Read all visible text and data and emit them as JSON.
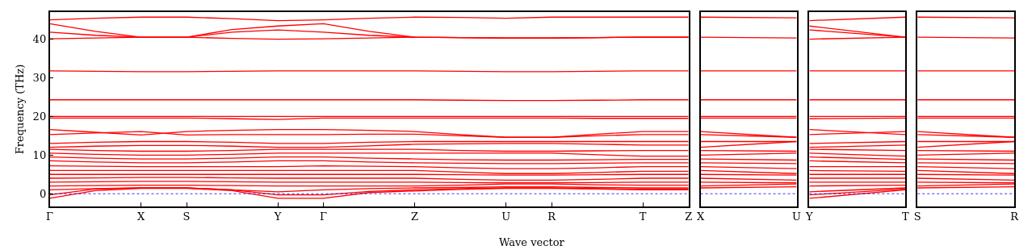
{
  "chart_data": [
    {
      "type": "line",
      "ylabel": "Frequency (THz)",
      "xlabel": "Wave vector",
      "grid": false,
      "marker": "none",
      "line_style": "solid",
      "categories": [
        "Γ",
        null,
        "X",
        "S",
        null,
        "Y",
        "Γ",
        null,
        "Z",
        null,
        "U",
        "R",
        null,
        "T",
        "Z"
      ],
      "ylim": [
        -3.3,
        47
      ],
      "yticks": [
        0,
        10,
        20,
        30,
        40
      ],
      "ref_lines": [
        {
          "axis": "y",
          "value": 0,
          "color": "#0000ff",
          "line_style": "dotted"
        }
      ],
      "series": [
        {
          "color": "#ff0000",
          "values": [
            45.0,
            45.4,
            45.7,
            45.7,
            45.3,
            44.8,
            45.0,
            45.4,
            45.7,
            45.6,
            45.4,
            45.7,
            45.7,
            45.7,
            45.7
          ]
        },
        {
          "color": "#ff0000",
          "values": [
            44.0,
            42.0,
            40.5,
            40.5,
            42.5,
            43.4,
            44.0,
            42.0,
            40.5,
            40.4,
            40.3,
            40.3,
            40.4,
            40.5,
            40.5
          ]
        },
        {
          "color": "#ff0000",
          "values": [
            41.8,
            41.0,
            40.5,
            40.5,
            41.8,
            42.4,
            41.8,
            41.0,
            40.5,
            40.4,
            40.3,
            40.3,
            40.4,
            40.5,
            40.5
          ]
        },
        {
          "color": "#ff0000",
          "values": [
            40.1,
            40.3,
            40.5,
            40.5,
            40.2,
            40.0,
            40.1,
            40.3,
            40.5,
            40.4,
            40.3,
            40.3,
            40.4,
            40.5,
            40.5
          ]
        },
        {
          "color": "#ff0000",
          "values": [
            31.8,
            31.7,
            31.6,
            31.6,
            31.7,
            31.8,
            31.8,
            31.8,
            31.8,
            31.7,
            31.6,
            31.6,
            31.7,
            31.8,
            31.8
          ]
        },
        {
          "color": "#ff0000",
          "values": [
            24.3,
            24.3,
            24.3,
            24.3,
            24.3,
            24.3,
            24.3,
            24.3,
            24.3,
            24.2,
            24.1,
            24.1,
            24.2,
            24.3,
            24.3
          ]
        },
        {
          "color": "#ff0000",
          "values": [
            20.0,
            20.0,
            20.0,
            20.0,
            20.0,
            20.0,
            20.0,
            20.0,
            20.0,
            20.0,
            20.0,
            20.0,
            20.0,
            20.0,
            20.0
          ]
        },
        {
          "color": "#ff0000",
          "values": [
            19.6,
            19.6,
            19.6,
            19.6,
            19.4,
            19.2,
            19.6,
            19.6,
            19.6,
            19.6,
            19.6,
            19.6,
            19.5,
            19.5,
            19.5
          ]
        },
        {
          "color": "#ff0000",
          "values": [
            16.6,
            15.9,
            15.2,
            16.1,
            16.4,
            16.6,
            16.6,
            16.4,
            16.1,
            15.3,
            14.6,
            14.6,
            15.4,
            16.1,
            16.1
          ]
        },
        {
          "color": "#ff0000",
          "values": [
            15.3,
            15.7,
            16.1,
            15.2,
            15.3,
            15.3,
            15.3,
            15.4,
            15.4,
            15.0,
            14.6,
            14.6,
            15.0,
            15.3,
            15.3
          ]
        },
        {
          "color": "#ff0000",
          "values": [
            13.0,
            13.3,
            13.5,
            13.5,
            13.3,
            13.0,
            13.0,
            13.3,
            13.5,
            13.5,
            13.5,
            13.5,
            13.5,
            13.5,
            13.5
          ]
        },
        {
          "color": "#ff0000",
          "values": [
            12.0,
            12.3,
            12.5,
            12.5,
            12.3,
            12.0,
            12.0,
            12.4,
            12.8,
            12.9,
            13.0,
            13.0,
            12.8,
            12.6,
            12.6
          ]
        },
        {
          "color": "#ff0000",
          "values": [
            11.5,
            11.2,
            11.0,
            11.0,
            11.2,
            11.5,
            11.5,
            11.5,
            11.5,
            11.2,
            11.0,
            11.0,
            11.1,
            11.2,
            11.2
          ]
        },
        {
          "color": "#ff0000",
          "values": [
            10.5,
            10.2,
            10.0,
            10.0,
            10.2,
            10.5,
            10.5,
            10.5,
            10.5,
            10.5,
            10.5,
            10.5,
            10.1,
            9.7,
            9.7
          ]
        },
        {
          "color": "#ff0000",
          "values": [
            9.5,
            9.2,
            9.0,
            9.0,
            9.2,
            9.5,
            9.5,
            9.2,
            9.0,
            8.8,
            8.7,
            8.7,
            8.8,
            8.9,
            8.9
          ]
        },
        {
          "color": "#ff0000",
          "values": [
            8.5,
            8.2,
            8.0,
            8.0,
            8.2,
            8.5,
            8.5,
            8.2,
            8.0,
            7.9,
            7.8,
            7.8,
            7.9,
            8.0,
            8.0
          ]
        },
        {
          "color": "#ff0000",
          "values": [
            7.2,
            7.1,
            7.0,
            7.0,
            7.0,
            7.0,
            7.2,
            7.1,
            7.0,
            6.7,
            6.5,
            6.5,
            6.7,
            7.0,
            7.0
          ]
        },
        {
          "color": "#ff0000",
          "values": [
            6.0,
            6.0,
            6.0,
            6.0,
            6.0,
            6.0,
            6.0,
            6.0,
            6.0,
            5.6,
            5.2,
            5.2,
            5.5,
            5.8,
            5.8
          ]
        },
        {
          "color": "#ff0000",
          "values": [
            5.0,
            5.0,
            5.0,
            5.0,
            5.0,
            5.0,
            5.0,
            5.0,
            5.0,
            4.9,
            4.8,
            4.8,
            4.9,
            5.0,
            5.0
          ]
        },
        {
          "color": "#ff0000",
          "values": [
            4.0,
            4.1,
            4.2,
            4.2,
            4.1,
            4.0,
            4.0,
            4.0,
            4.0,
            3.7,
            3.5,
            3.5,
            3.7,
            4.0,
            4.0
          ]
        },
        {
          "color": "#ff0000",
          "values": [
            3.0,
            3.1,
            3.2,
            3.2,
            3.1,
            3.0,
            3.0,
            3.0,
            3.0,
            2.9,
            2.8,
            2.8,
            2.9,
            3.0,
            3.0
          ]
        },
        {
          "color": "#ff0000",
          "values": [
            2.0,
            2.1,
            2.2,
            2.2,
            2.1,
            2.0,
            2.0,
            2.0,
            2.0,
            2.2,
            2.5,
            2.5,
            2.3,
            2.2,
            2.2
          ]
        },
        {
          "color": "#ff0000",
          "values": [
            1.0,
            1.3,
            1.5,
            1.5,
            1.0,
            0.5,
            1.0,
            1.3,
            1.5,
            1.6,
            1.8,
            1.8,
            1.6,
            1.5,
            1.5
          ]
        },
        {
          "color": "#ff0000",
          "values": [
            -0.3,
            1.2,
            1.5,
            1.5,
            1.0,
            -0.3,
            -0.3,
            0.6,
            1.0,
            1.3,
            1.5,
            1.5,
            1.3,
            1.2,
            1.2
          ]
        },
        {
          "color": "#ff0000",
          "values": [
            -1.2,
            0.8,
            1.4,
            1.4,
            0.8,
            -1.2,
            -1.2,
            0.3,
            0.7,
            1.1,
            1.4,
            1.4,
            1.2,
            1.0,
            1.0
          ]
        }
      ]
    },
    {
      "type": "line",
      "marker": "none",
      "line_style": "solid",
      "tick_labels": "x",
      "categories": [
        "X",
        "U"
      ],
      "ylim": [
        -3.3,
        47
      ],
      "ref_lines": [
        {
          "axis": "y",
          "value": 0,
          "color": "#0000ff",
          "line_style": "dotted"
        }
      ],
      "series": [
        {
          "color": "#ff0000",
          "values": [
            45.7,
            45.5
          ]
        },
        {
          "color": "#ff0000",
          "values": [
            40.5,
            40.3
          ]
        },
        {
          "color": "#ff0000",
          "values": [
            31.8,
            31.8
          ]
        },
        {
          "color": "#ff0000",
          "values": [
            24.3,
            24.3
          ]
        },
        {
          "color": "#ff0000",
          "values": [
            20.0,
            20.0
          ]
        },
        {
          "color": "#ff0000",
          "values": [
            19.6,
            19.6
          ]
        },
        {
          "color": "#ff0000",
          "values": [
            16.1,
            14.6
          ]
        },
        {
          "color": "#ff0000",
          "values": [
            15.3,
            14.6
          ]
        },
        {
          "color": "#ff0000",
          "values": [
            13.5,
            13.5
          ]
        },
        {
          "color": "#ff0000",
          "values": [
            12.0,
            13.5
          ]
        },
        {
          "color": "#ff0000",
          "values": [
            11.2,
            11.0
          ]
        },
        {
          "color": "#ff0000",
          "values": [
            10.0,
            10.5
          ]
        },
        {
          "color": "#ff0000",
          "values": [
            9.0,
            8.7
          ]
        },
        {
          "color": "#ff0000",
          "values": [
            8.0,
            7.8
          ]
        },
        {
          "color": "#ff0000",
          "values": [
            7.0,
            6.5
          ]
        },
        {
          "color": "#ff0000",
          "values": [
            6.0,
            5.2
          ]
        },
        {
          "color": "#ff0000",
          "values": [
            5.0,
            4.8
          ]
        },
        {
          "color": "#ff0000",
          "values": [
            4.0,
            3.5
          ]
        },
        {
          "color": "#ff0000",
          "values": [
            3.0,
            2.8
          ]
        },
        {
          "color": "#ff0000",
          "values": [
            2.0,
            2.5
          ]
        },
        {
          "color": "#ff0000",
          "values": [
            1.5,
            1.8
          ]
        }
      ]
    },
    {
      "type": "line",
      "marker": "none",
      "line_style": "solid",
      "tick_labels": "x",
      "categories": [
        "Y",
        "T"
      ],
      "ylim": [
        -3.3,
        47
      ],
      "ref_lines": [
        {
          "axis": "y",
          "value": 0,
          "color": "#0000ff",
          "line_style": "dotted"
        }
      ],
      "series": [
        {
          "color": "#ff0000",
          "values": [
            44.8,
            45.7
          ]
        },
        {
          "color": "#ff0000",
          "values": [
            43.4,
            40.5
          ]
        },
        {
          "color": "#ff0000",
          "values": [
            42.4,
            40.5
          ]
        },
        {
          "color": "#ff0000",
          "values": [
            40.0,
            40.5
          ]
        },
        {
          "color": "#ff0000",
          "values": [
            31.8,
            31.8
          ]
        },
        {
          "color": "#ff0000",
          "values": [
            24.3,
            24.3
          ]
        },
        {
          "color": "#ff0000",
          "values": [
            20.0,
            20.0
          ]
        },
        {
          "color": "#ff0000",
          "values": [
            19.4,
            19.6
          ]
        },
        {
          "color": "#ff0000",
          "values": [
            16.6,
            15.3
          ]
        },
        {
          "color": "#ff0000",
          "values": [
            15.3,
            16.1
          ]
        },
        {
          "color": "#ff0000",
          "values": [
            13.0,
            13.5
          ]
        },
        {
          "color": "#ff0000",
          "values": [
            12.0,
            12.6
          ]
        },
        {
          "color": "#ff0000",
          "values": [
            11.5,
            11.2
          ]
        },
        {
          "color": "#ff0000",
          "values": [
            10.5,
            9.7
          ]
        },
        {
          "color": "#ff0000",
          "values": [
            9.5,
            8.9
          ]
        },
        {
          "color": "#ff0000",
          "values": [
            8.5,
            8.0
          ]
        },
        {
          "color": "#ff0000",
          "values": [
            7.0,
            7.0
          ]
        },
        {
          "color": "#ff0000",
          "values": [
            6.0,
            5.8
          ]
        },
        {
          "color": "#ff0000",
          "values": [
            5.0,
            5.0
          ]
        },
        {
          "color": "#ff0000",
          "values": [
            4.0,
            4.0
          ]
        },
        {
          "color": "#ff0000",
          "values": [
            3.0,
            3.0
          ]
        },
        {
          "color": "#ff0000",
          "values": [
            2.0,
            2.2
          ]
        },
        {
          "color": "#ff0000",
          "values": [
            0.5,
            1.5
          ]
        },
        {
          "color": "#ff0000",
          "values": [
            -0.3,
            1.2
          ]
        },
        {
          "color": "#ff0000",
          "values": [
            -1.2,
            1.0
          ]
        }
      ]
    },
    {
      "type": "line",
      "marker": "none",
      "line_style": "solid",
      "tick_labels": "x",
      "categories": [
        "S",
        "R"
      ],
      "ylim": [
        -3.3,
        47
      ],
      "ref_lines": [
        {
          "axis": "y",
          "value": 0,
          "color": "#0000ff",
          "line_style": "dotted"
        }
      ],
      "series": [
        {
          "color": "#ff0000",
          "values": [
            45.7,
            45.5
          ]
        },
        {
          "color": "#ff0000",
          "values": [
            40.5,
            40.3
          ]
        },
        {
          "color": "#ff0000",
          "values": [
            31.8,
            31.8
          ]
        },
        {
          "color": "#ff0000",
          "values": [
            24.3,
            24.3
          ]
        },
        {
          "color": "#ff0000",
          "values": [
            20.0,
            20.0
          ]
        },
        {
          "color": "#ff0000",
          "values": [
            19.6,
            19.6
          ]
        },
        {
          "color": "#ff0000",
          "values": [
            16.1,
            14.6
          ]
        },
        {
          "color": "#ff0000",
          "values": [
            15.3,
            14.6
          ]
        },
        {
          "color": "#ff0000",
          "values": [
            13.5,
            13.5
          ]
        },
        {
          "color": "#ff0000",
          "values": [
            12.0,
            13.5
          ]
        },
        {
          "color": "#ff0000",
          "values": [
            11.2,
            11.0
          ]
        },
        {
          "color": "#ff0000",
          "values": [
            10.0,
            10.5
          ]
        },
        {
          "color": "#ff0000",
          "values": [
            9.0,
            8.7
          ]
        },
        {
          "color": "#ff0000",
          "values": [
            8.0,
            7.8
          ]
        },
        {
          "color": "#ff0000",
          "values": [
            7.0,
            6.5
          ]
        },
        {
          "color": "#ff0000",
          "values": [
            6.0,
            5.2
          ]
        },
        {
          "color": "#ff0000",
          "values": [
            5.0,
            4.8
          ]
        },
        {
          "color": "#ff0000",
          "values": [
            4.0,
            3.5
          ]
        },
        {
          "color": "#ff0000",
          "values": [
            3.0,
            2.8
          ]
        },
        {
          "color": "#ff0000",
          "values": [
            2.0,
            2.5
          ]
        },
        {
          "color": "#ff0000",
          "values": [
            1.5,
            1.8
          ]
        }
      ]
    }
  ]
}
